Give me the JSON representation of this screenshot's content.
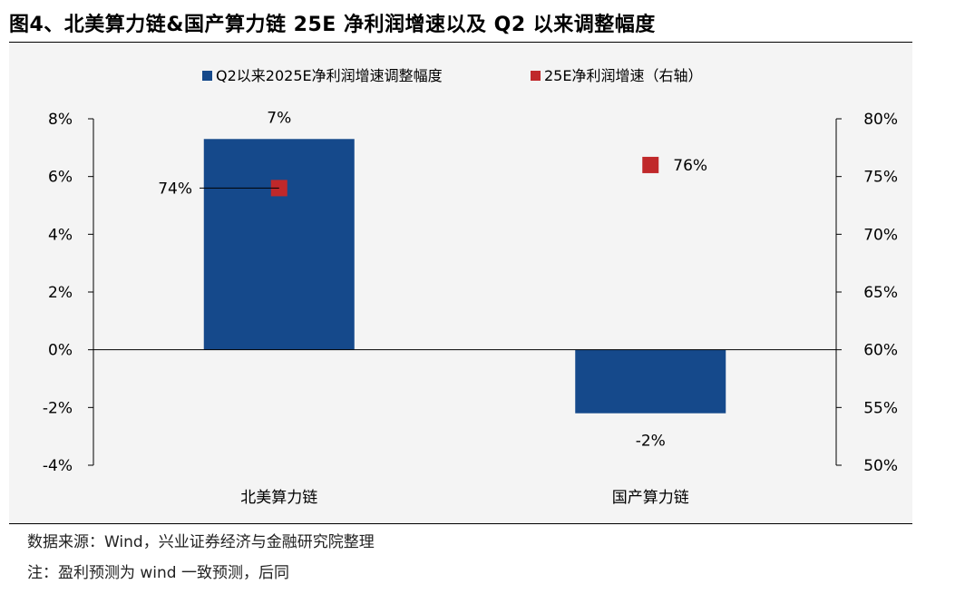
{
  "title": "图4、北美算力链&国产算力链 25E 净利润增速以及 Q2 以来调整幅度",
  "footer": {
    "source": "数据来源：Wind，兴业证券经济与金融研究院整理",
    "note": "注：盈利预测为 wind 一致预测，后同"
  },
  "colors": {
    "bar": "#15498b",
    "marker": "#c0282a",
    "background": "#f4f4f4"
  },
  "chart_data": {
    "type": "bar",
    "categories": [
      "北美算力链",
      "国产算力链"
    ],
    "series": [
      {
        "name": "Q2以来2025E净利润增速调整幅度",
        "kind": "bar",
        "axis": "left",
        "values": [
          7.3,
          -2.2
        ],
        "labels": [
          "7%",
          "-2%"
        ]
      },
      {
        "name": "25E净利润增速（右轴）",
        "kind": "marker",
        "axis": "right",
        "values": [
          74,
          76
        ],
        "labels": [
          "74%",
          "76%"
        ]
      }
    ],
    "y_left": {
      "range": [
        -4,
        8
      ],
      "ticks": [
        "8%",
        "6%",
        "4%",
        "2%",
        "0%",
        "-2%",
        "-4%"
      ]
    },
    "y_right": {
      "range": [
        50,
        80
      ],
      "ticks": [
        "80%",
        "75%",
        "70%",
        "65%",
        "60%",
        "55%",
        "50%"
      ]
    },
    "legend_position": "top-center",
    "grid": false
  }
}
